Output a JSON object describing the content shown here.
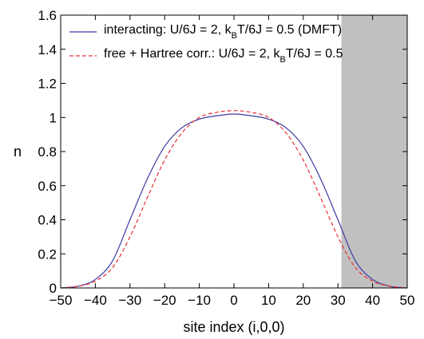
{
  "chart_data": {
    "type": "line",
    "xlabel": "site index (i,0,0)",
    "ylabel": "n",
    "xlim": [
      -50,
      50
    ],
    "ylim": [
      0,
      1.6
    ],
    "x_ticks": [
      -50,
      -40,
      -30,
      -20,
      -10,
      0,
      10,
      20,
      30,
      40,
      50
    ],
    "y_ticks": [
      0,
      0.2,
      0.4,
      0.6,
      0.8,
      1,
      1.2,
      1.4,
      1.6
    ],
    "x_tick_labels": [
      "−50",
      "−40",
      "−30",
      "−20",
      "−10",
      "0",
      "10",
      "20",
      "30",
      "40",
      "50"
    ],
    "y_tick_labels": [
      "0",
      "0.2",
      "0.4",
      "0.6",
      "0.8",
      "1",
      "1.2",
      "1.4",
      "1.6"
    ],
    "grid": false,
    "legend_position": "top",
    "shaded_region": {
      "x_start": 31,
      "x_end": 50,
      "color": "#c0c0c0"
    },
    "series": [
      {
        "legend_parts": [
          "interacting: U/6J = 2, k",
          "B",
          "T/6J = 0.5 (DMFT)"
        ],
        "color": "#3b3ba0",
        "style": "solid",
        "x": [
          -50,
          -45,
          -40,
          -35,
          -30,
          -25,
          -20,
          -15,
          -10,
          -5,
          0,
          5,
          10,
          15,
          20,
          25,
          30,
          35,
          40,
          45,
          50
        ],
        "y": [
          0.0,
          0.01,
          0.05,
          0.16,
          0.4,
          0.64,
          0.83,
          0.94,
          0.99,
          1.01,
          1.02,
          1.01,
          0.99,
          0.94,
          0.83,
          0.64,
          0.4,
          0.16,
          0.05,
          0.01,
          0.0
        ]
      },
      {
        "legend_parts": [
          "free + Hartree corr.: U/6J = 2, k",
          "B",
          "T/6J = 0.5"
        ],
        "color": "#e8303a",
        "style": "dashed",
        "x": [
          -50,
          -45,
          -40,
          -35,
          -30,
          -25,
          -20,
          -15,
          -10,
          -5,
          0,
          5,
          10,
          15,
          20,
          25,
          30,
          35,
          40,
          45,
          50
        ],
        "y": [
          0.0,
          0.01,
          0.04,
          0.12,
          0.3,
          0.53,
          0.75,
          0.91,
          1.0,
          1.03,
          1.04,
          1.03,
          1.0,
          0.91,
          0.75,
          0.53,
          0.3,
          0.12,
          0.04,
          0.01,
          0.0
        ]
      }
    ]
  }
}
